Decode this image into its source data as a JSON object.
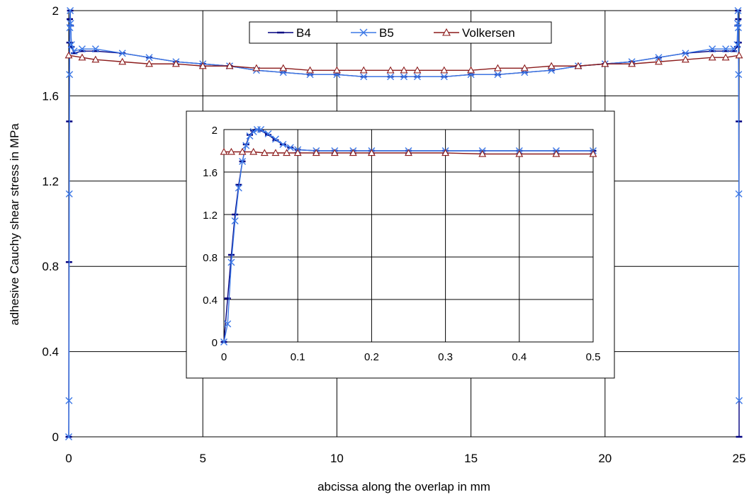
{
  "chart_data": [
    {
      "type": "line",
      "title": "",
      "xlabel": "abcissa along the overlap in mm",
      "ylabel": "adhesive Cauchy shear stress in MPa",
      "xlim": [
        0,
        25
      ],
      "ylim": [
        0,
        2
      ],
      "xticks": [
        0,
        5,
        10,
        15,
        20,
        25
      ],
      "yticks": [
        0,
        0.4,
        0.8,
        1.2,
        1.6,
        2
      ],
      "xtick_labels": [
        "0",
        "5",
        "10",
        "15",
        "20",
        "25"
      ],
      "ytick_labels": [
        "0",
        "0.4",
        "0.8",
        "1.2",
        "1.6",
        "2"
      ],
      "grid": true,
      "legend_position": "top-center",
      "series": [
        {
          "name": "B4",
          "color": "#000080",
          "marker": "dash",
          "x": [
            0,
            0.01,
            0.02,
            0.03,
            0.04,
            0.055,
            0.07,
            0.1,
            0.2,
            0.5,
            1,
            2,
            3,
            4,
            5,
            6,
            7,
            8,
            9,
            10,
            11,
            12,
            12.5,
            13,
            14,
            15,
            16,
            17,
            18,
            19,
            20,
            21,
            22,
            23,
            24,
            24.5,
            24.8,
            24.93,
            24.945,
            24.96,
            24.97,
            24.98,
            24.99,
            25
          ],
          "y": [
            0,
            0.82,
            1.48,
            1.85,
            1.96,
            2.0,
            1.93,
            1.83,
            1.8,
            1.81,
            1.81,
            1.8,
            1.78,
            1.76,
            1.75,
            1.74,
            1.72,
            1.71,
            1.7,
            1.7,
            1.69,
            1.69,
            1.69,
            1.69,
            1.69,
            1.7,
            1.7,
            1.71,
            1.72,
            1.74,
            1.75,
            1.76,
            1.78,
            1.8,
            1.81,
            1.81,
            1.81,
            1.83,
            1.93,
            2.0,
            1.96,
            1.85,
            1.48,
            0
          ]
        },
        {
          "name": "B5",
          "color": "#3c78e6",
          "marker": "x",
          "x": [
            0,
            0.01,
            0.02,
            0.03,
            0.04,
            0.055,
            0.07,
            0.1,
            0.2,
            0.5,
            1,
            2,
            3,
            4,
            5,
            6,
            7,
            8,
            9,
            10,
            11,
            12,
            12.5,
            13,
            14,
            15,
            16,
            17,
            18,
            19,
            20,
            21,
            22,
            23,
            24,
            24.5,
            24.8,
            24.93,
            24.945,
            24.96,
            24.97,
            24.98,
            24.99,
            25
          ],
          "y": [
            0,
            0.17,
            1.14,
            1.7,
            1.92,
            2.0,
            1.94,
            1.84,
            1.81,
            1.82,
            1.82,
            1.8,
            1.78,
            1.76,
            1.75,
            1.74,
            1.72,
            1.71,
            1.7,
            1.7,
            1.69,
            1.69,
            1.69,
            1.69,
            1.69,
            1.7,
            1.7,
            1.71,
            1.72,
            1.74,
            1.75,
            1.76,
            1.78,
            1.8,
            1.82,
            1.82,
            1.82,
            1.84,
            1.94,
            2.0,
            1.92,
            1.7,
            1.14,
            0.17
          ]
        },
        {
          "name": "Volkersen",
          "color": "#8b1a1a",
          "marker": "triangle",
          "x": [
            0,
            0.5,
            1,
            2,
            3,
            4,
            5,
            6,
            7,
            8,
            9,
            10,
            11,
            12,
            12.5,
            13,
            14,
            15,
            16,
            17,
            18,
            19,
            20,
            21,
            22,
            23,
            24,
            24.5,
            25
          ],
          "y": [
            1.79,
            1.78,
            1.77,
            1.76,
            1.75,
            1.75,
            1.74,
            1.74,
            1.73,
            1.73,
            1.72,
            1.72,
            1.72,
            1.72,
            1.72,
            1.72,
            1.72,
            1.72,
            1.73,
            1.73,
            1.74,
            1.74,
            1.75,
            1.75,
            1.76,
            1.77,
            1.78,
            1.78,
            1.79
          ]
        }
      ]
    },
    {
      "type": "line",
      "title": "",
      "xlabel": "",
      "ylabel": "",
      "xlim": [
        0,
        0.5
      ],
      "ylim": [
        0,
        2
      ],
      "xticks": [
        0,
        0.1,
        0.2,
        0.3,
        0.4,
        0.5
      ],
      "yticks": [
        0,
        0.4,
        0.8,
        1.2,
        1.6,
        2
      ],
      "xtick_labels": [
        "0",
        "0.1",
        "0.2",
        "0.3",
        "0.4",
        "0.5"
      ],
      "ytick_labels": [
        "0",
        "0.4",
        "0.8",
        "1.2",
        "1.6",
        "2"
      ],
      "grid": true,
      "series": [
        {
          "name": "B4",
          "color": "#000080",
          "marker": "dash",
          "x": [
            0,
            0.005,
            0.01,
            0.015,
            0.02,
            0.025,
            0.03,
            0.035,
            0.04,
            0.045,
            0.05,
            0.06,
            0.07,
            0.08,
            0.09,
            0.1,
            0.125,
            0.15,
            0.175,
            0.2,
            0.25,
            0.3,
            0.35,
            0.4,
            0.45,
            0.5
          ],
          "y": [
            0,
            0.41,
            0.82,
            1.2,
            1.48,
            1.7,
            1.86,
            1.95,
            1.99,
            2.0,
            1.99,
            1.95,
            1.9,
            1.86,
            1.83,
            1.81,
            1.8,
            1.8,
            1.8,
            1.8,
            1.8,
            1.8,
            1.8,
            1.8,
            1.8,
            1.8
          ]
        },
        {
          "name": "B5",
          "color": "#3c78e6",
          "marker": "x",
          "x": [
            0,
            0.005,
            0.01,
            0.015,
            0.02,
            0.025,
            0.03,
            0.035,
            0.04,
            0.045,
            0.05,
            0.06,
            0.07,
            0.08,
            0.09,
            0.1,
            0.125,
            0.15,
            0.175,
            0.2,
            0.25,
            0.3,
            0.35,
            0.4,
            0.45,
            0.5
          ],
          "y": [
            0,
            0.17,
            0.75,
            1.14,
            1.45,
            1.7,
            1.85,
            1.94,
            1.98,
            2.0,
            2.0,
            1.96,
            1.91,
            1.86,
            1.83,
            1.81,
            1.8,
            1.8,
            1.8,
            1.8,
            1.8,
            1.8,
            1.8,
            1.8,
            1.8,
            1.8
          ]
        },
        {
          "name": "Volkersen",
          "color": "#8b1a1a",
          "marker": "triangle",
          "x": [
            0,
            0.01,
            0.025,
            0.04,
            0.055,
            0.07,
            0.085,
            0.1,
            0.125,
            0.15,
            0.175,
            0.2,
            0.25,
            0.3,
            0.35,
            0.4,
            0.45,
            0.5
          ],
          "y": [
            1.79,
            1.79,
            1.79,
            1.79,
            1.78,
            1.78,
            1.78,
            1.78,
            1.78,
            1.78,
            1.78,
            1.78,
            1.78,
            1.78,
            1.77,
            1.77,
            1.77,
            1.77
          ]
        }
      ]
    }
  ],
  "legend": {
    "entries": [
      {
        "label": "B4",
        "color": "#000080",
        "marker": "dash"
      },
      {
        "label": "B5",
        "color": "#3c78e6",
        "marker": "x"
      },
      {
        "label": "Volkersen",
        "color": "#8b1a1a",
        "marker": "triangle"
      }
    ]
  }
}
